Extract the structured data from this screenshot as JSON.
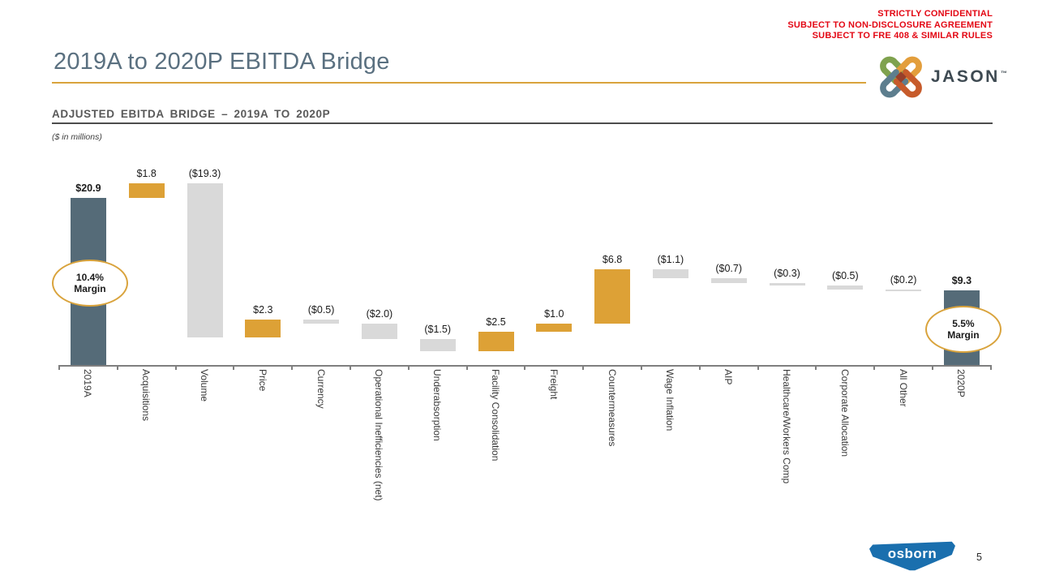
{
  "confidential": {
    "lines": [
      "STRICTLY CONFIDENTIAL",
      "SUBJECT TO NON-DISCLOSURE AGREEMENT",
      "SUBJECT TO FRE 408 & SIMILAR RULES"
    ]
  },
  "header": {
    "title": "2019A to 2020P EBITDA Bridge",
    "logo_text": "JASON",
    "logo_tm": "™"
  },
  "section": {
    "heading": "ADJUSTED EBITDA BRIDGE – 2019A TO 2020P",
    "units_note": "($ in millions)"
  },
  "chart_data": {
    "type": "bar",
    "subtype": "waterfall",
    "title": "Adjusted EBITDA Bridge – 2019A to 2020P",
    "units": "$ in millions",
    "ylim": [
      0,
      22.7
    ],
    "grid": false,
    "legend": false,
    "bars": [
      {
        "label": "2019A",
        "value": 20.9,
        "display": "$20.9",
        "kind": "total",
        "annotation": {
          "line1": "10.4%",
          "line2": "Margin"
        }
      },
      {
        "label": "Acquisitions",
        "value": 1.8,
        "display": "$1.8",
        "kind": "increase"
      },
      {
        "label": "Volume",
        "value": -19.3,
        "display": "($19.3)",
        "kind": "decrease"
      },
      {
        "label": "Price",
        "value": 2.3,
        "display": "$2.3",
        "kind": "increase"
      },
      {
        "label": "Currency",
        "value": -0.5,
        "display": "($0.5)",
        "kind": "decrease"
      },
      {
        "label": "Operational Inefficiencies (net)",
        "value": -2.0,
        "display": "($2.0)",
        "kind": "decrease"
      },
      {
        "label": "Underabsorption",
        "value": -1.5,
        "display": "($1.5)",
        "kind": "decrease"
      },
      {
        "label": "Facility Consolidation",
        "value": 2.5,
        "display": "$2.5",
        "kind": "increase"
      },
      {
        "label": "Freight",
        "value": 1.0,
        "display": "$1.0",
        "kind": "increase"
      },
      {
        "label": "Countermeasures",
        "value": 6.8,
        "display": "$6.8",
        "kind": "increase"
      },
      {
        "label": "Wage Inflation",
        "value": -1.1,
        "display": "($1.1)",
        "kind": "decrease"
      },
      {
        "label": "AIP",
        "value": -0.7,
        "display": "($0.7)",
        "kind": "decrease"
      },
      {
        "label": "Healthcare/Workers Comp",
        "value": -0.3,
        "display": "($0.3)",
        "kind": "decrease"
      },
      {
        "label": "Corporate Allocation",
        "value": -0.5,
        "display": "($0.5)",
        "kind": "decrease"
      },
      {
        "label": "All Other",
        "value": -0.2,
        "display": "($0.2)",
        "kind": "decrease"
      },
      {
        "label": "2020P",
        "value": 9.3,
        "display": "$9.3",
        "kind": "total",
        "annotation": {
          "line1": "5.5%",
          "line2": "Margin"
        }
      }
    ],
    "colors": {
      "total": "#556b78",
      "increase": "#dda136",
      "decrease": "#d9d9d9",
      "annotation_ring": "#d9a33c",
      "axis": "#7f7f7f"
    }
  },
  "footer": {
    "logo_text": "osborn",
    "page_number": "5"
  }
}
